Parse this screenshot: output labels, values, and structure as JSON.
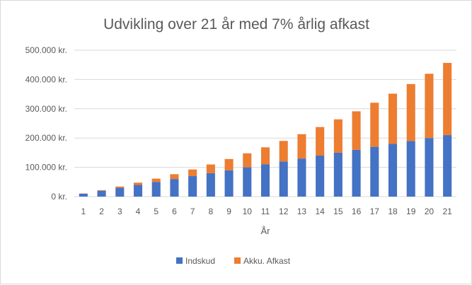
{
  "chart_data": {
    "type": "bar",
    "stacked": true,
    "title": "Udvikling over 21 år med 7% årlig afkast",
    "xlabel": "År",
    "ylabel": "",
    "categories": [
      "1",
      "2",
      "3",
      "4",
      "5",
      "6",
      "7",
      "8",
      "9",
      "10",
      "11",
      "12",
      "13",
      "14",
      "15",
      "16",
      "17",
      "18",
      "19",
      "20",
      "21"
    ],
    "series": [
      {
        "name": "Indskud",
        "color": "#4472c4",
        "values": [
          10000,
          20000,
          30000,
          40000,
          50000,
          60000,
          70000,
          80000,
          90000,
          100000,
          110000,
          120000,
          130000,
          140000,
          150000,
          160000,
          170000,
          180000,
          190000,
          200000,
          210000
        ]
      },
      {
        "name": "Akku. Afkast",
        "color": "#ed7d31",
        "values": [
          700,
          2100,
          4400,
          7700,
          11400,
          16500,
          22600,
          29800,
          38400,
          47800,
          58300,
          70100,
          83300,
          97600,
          113900,
          131300,
          150600,
          171600,
          194400,
          219600,
          246700
        ]
      }
    ],
    "ylim": [
      0,
      500000
    ],
    "yticks": [
      "0 kr.",
      "100.000 kr.",
      "200.000 kr.",
      "300.000 kr.",
      "400.000 kr.",
      "500.000 kr."
    ],
    "grid": true,
    "legend": "bottom"
  }
}
